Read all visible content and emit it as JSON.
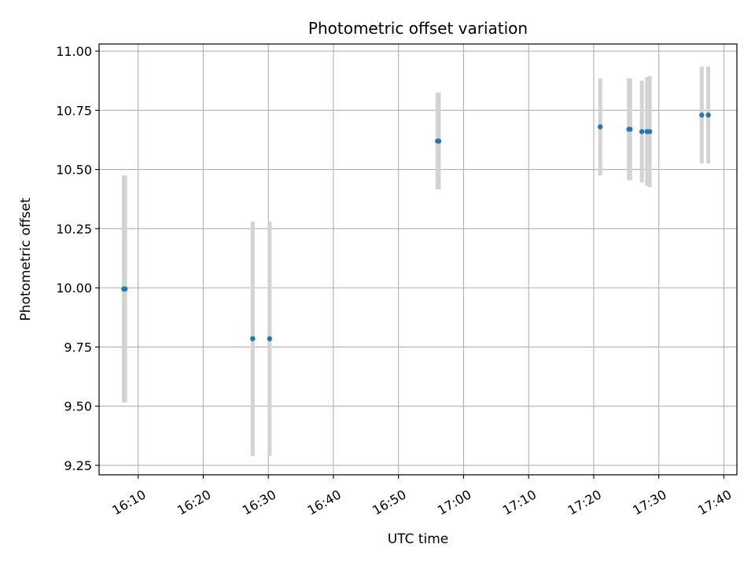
{
  "chart_data": {
    "type": "scatter",
    "title": "Photometric offset variation",
    "xlabel": "UTC time",
    "ylabel": "Photometric offset",
    "xlim": [
      "16:04:00",
      "17:42:00"
    ],
    "ylim": [
      9.21,
      11.03
    ],
    "x_ticks": [
      "16:10",
      "16:20",
      "16:30",
      "16:40",
      "16:50",
      "17:00",
      "17:10",
      "17:20",
      "17:30",
      "17:40"
    ],
    "y_ticks": [
      "9.25",
      "9.50",
      "9.75",
      "10.00",
      "10.25",
      "10.50",
      "10.75",
      "11.00"
    ],
    "grid": true,
    "marker_color": "#1f77b4",
    "errorbar_color": "#d3d3d3",
    "points": [
      {
        "x": "16:07:48",
        "y": 9.995,
        "err": 0.48
      },
      {
        "x": "16:08:00",
        "y": 9.995,
        "err": 0.48
      },
      {
        "x": "16:27:36",
        "y": 9.785,
        "err": 0.495
      },
      {
        "x": "16:30:12",
        "y": 9.785,
        "err": 0.495
      },
      {
        "x": "16:56:00",
        "y": 10.62,
        "err": 0.205
      },
      {
        "x": "16:56:12",
        "y": 10.62,
        "err": 0.205
      },
      {
        "x": "17:21:00",
        "y": 10.68,
        "err": 0.205
      },
      {
        "x": "17:25:24",
        "y": 10.67,
        "err": 0.215
      },
      {
        "x": "17:25:36",
        "y": 10.67,
        "err": 0.215
      },
      {
        "x": "17:27:24",
        "y": 10.66,
        "err": 0.215
      },
      {
        "x": "17:28:12",
        "y": 10.66,
        "err": 0.23
      },
      {
        "x": "17:28:36",
        "y": 10.66,
        "err": 0.235
      },
      {
        "x": "17:36:36",
        "y": 10.73,
        "err": 0.205
      },
      {
        "x": "17:37:36",
        "y": 10.73,
        "err": 0.205
      }
    ]
  }
}
